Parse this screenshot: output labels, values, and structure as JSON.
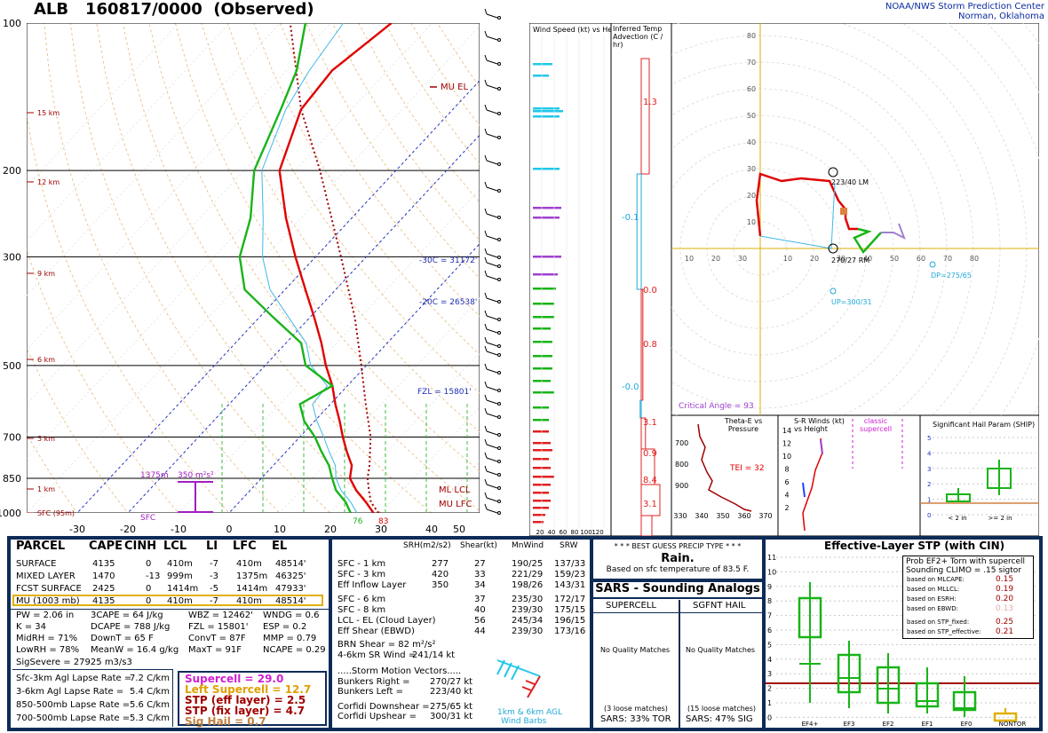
{
  "header": {
    "station": "ALB",
    "datetime": "160817/0000",
    "status": "(Observed)",
    "org_line1": "NOAA/NWS Storm Prediction Center",
    "org_line2": "Norman, Oklahoma"
  },
  "chart_data": [
    {
      "type": "line",
      "name": "skewt",
      "pressure_ticks": [
        "100",
        "200",
        "300",
        "500",
        "700",
        "850",
        "1000"
      ],
      "temp_ticks": [
        "-30",
        "-20",
        "-10",
        "0",
        "10",
        "20",
        "30",
        "40",
        "50"
      ],
      "height_labels": [
        "15 km",
        "12 km",
        "9 km",
        "6 km",
        "3 km",
        "1 km",
        "SFC (95m)"
      ],
      "annotations": {
        "mu_el": "MU EL",
        "m30c": "-30C = 31172'",
        "m20c": "-20C = 26538'",
        "fzl": "FZL = 15801'",
        "ml_lcl": "ML LCL",
        "mu_lfc": "MU LFC",
        "eff_top": "1375m",
        "eff_srh": "350 m²s²",
        "sfc": "SFC",
        "sfc_td": "76",
        "sfc_t": "83"
      },
      "temperature": [
        [
          1000,
          28.5
        ],
        [
          950,
          25
        ],
        [
          900,
          21
        ],
        [
          850,
          17.5
        ],
        [
          800,
          15.5
        ],
        [
          750,
          12
        ],
        [
          700,
          8.5
        ],
        [
          650,
          5
        ],
        [
          600,
          1
        ],
        [
          550,
          -3
        ],
        [
          500,
          -8
        ],
        [
          450,
          -13
        ],
        [
          400,
          -19
        ],
        [
          350,
          -26
        ],
        [
          300,
          -34
        ],
        [
          250,
          -43
        ],
        [
          200,
          -53
        ],
        [
          150,
          -60
        ],
        [
          125,
          -61
        ],
        [
          100,
          -58
        ]
      ],
      "dewpoint": [
        [
          1000,
          24
        ],
        [
          950,
          21
        ],
        [
          900,
          17
        ],
        [
          850,
          14
        ],
        [
          800,
          11
        ],
        [
          750,
          7
        ],
        [
          700,
          3
        ],
        [
          650,
          -2
        ],
        [
          600,
          -6
        ],
        [
          550,
          -3
        ],
        [
          500,
          -12
        ],
        [
          450,
          -17
        ],
        [
          400,
          -27
        ],
        [
          350,
          -38
        ],
        [
          300,
          -45
        ],
        [
          250,
          -50
        ],
        [
          200,
          -58
        ],
        [
          150,
          -64
        ],
        [
          125,
          -68
        ],
        [
          100,
          -75
        ]
      ]
    },
    {
      "type": "bar",
      "name": "wind-speed-vs-height",
      "title": "Wind Speed (kt) vs Height",
      "x_ticks": [
        "20",
        "40",
        "60",
        "80",
        "100",
        "120"
      ]
    },
    {
      "type": "bar",
      "name": "temp-advection",
      "title": "Inferred Temp Advection (C / hr)",
      "labels": [
        "1.3",
        "-0.1",
        "0.0",
        "0.8",
        "-0.0",
        "3.1",
        "0.9",
        "8.4",
        "3.1"
      ]
    },
    {
      "type": "line",
      "name": "hodograph",
      "ticks": [
        "10",
        "20",
        "30",
        "40",
        "50",
        "60",
        "70",
        "80"
      ],
      "x_ticks_left": [
        "30",
        "20",
        "10"
      ],
      "labels": {
        "lm": "223/40 LM",
        "rm": "270/27 RM",
        "dp": "DP=275/65",
        "up": "UP=300/31",
        "crit": "Critical Angle = 93"
      }
    },
    {
      "type": "line",
      "name": "theta-e",
      "title": "Theta-E vs Pressure",
      "tei": "TEI = 32",
      "x_ticks": [
        "330",
        "340",
        "350",
        "360",
        "370"
      ],
      "y_ticks": [
        "700",
        "800",
        "900"
      ]
    },
    {
      "type": "line",
      "name": "sr-winds",
      "title": "S-R Winds (kt) vs Height",
      "legend": "classic supercell",
      "y_ticks": [
        "14",
        "12",
        "10",
        "8",
        "6",
        "4",
        "2"
      ]
    },
    {
      "type": "bar",
      "name": "ship",
      "title": "Significant Hail Param (SHIP)",
      "y_ticks": [
        "5",
        "4",
        "3",
        "2",
        "1",
        "0"
      ],
      "categories": [
        "< 2 in",
        ">= 2 in"
      ]
    },
    {
      "type": "bar",
      "name": "eff-stp",
      "title": "Effective-Layer STP (with CIN)",
      "categories": [
        "EF4+",
        "EF3",
        "EF2",
        "EF1",
        "EF0",
        "NONTOR"
      ],
      "y_ticks": [
        "11",
        "10",
        "9",
        "8",
        "7",
        "6",
        "5",
        "4",
        "3",
        "2",
        "1",
        "0"
      ]
    }
  ],
  "parcel": {
    "headers": [
      "PARCEL",
      "CAPE",
      "CINH",
      "LCL",
      "LI",
      "LFC",
      "EL"
    ],
    "rows": [
      [
        "SURFACE",
        "4135",
        "0",
        "410m",
        "-7",
        "410m",
        "48514'"
      ],
      [
        "MIXED LAYER",
        "1470",
        "-13",
        "999m",
        "-3",
        "1375m",
        "46325'"
      ],
      [
        "FCST SURFACE",
        "2425",
        "0",
        "1414m",
        "-5",
        "1414m",
        "47933'"
      ],
      [
        "MU  (1003 mb)",
        "4135",
        "0",
        "410m",
        "-7",
        "410m",
        "48514'"
      ]
    ]
  },
  "indices": [
    [
      "PW = 2.06 in",
      "3CAPE = 64 J/kg",
      "WBZ = 12462'",
      "WNDG = 0.6"
    ],
    [
      "K = 34",
      "DCAPE = 788 J/kg",
      "FZL = 15801'",
      "ESP = 0.2"
    ],
    [
      "MidRH = 71%",
      "DownT = 65 F",
      "ConvT = 87F",
      "MMP = 0.79"
    ],
    [
      "LowRH = 78%",
      "MeanW = 16.4 g/kg",
      "MaxT = 91F",
      "NCAPE = 0.29"
    ]
  ],
  "sig_severe": "SigSevere = 27925 m3/s3",
  "lapse": [
    [
      "Sfc-3km Agl Lapse Rate =",
      "7.2 C/km"
    ],
    [
      "3-6km Agl Lapse Rate =",
      "5.4 C/km"
    ],
    [
      "850-500mb Lapse Rate =",
      "5.6 C/km"
    ],
    [
      "700-500mb Lapse Rate =",
      "5.3 C/km"
    ]
  ],
  "composites": [
    "Supercell = 29.0",
    "Left Supercell = 12.7",
    "STP (eff layer) = 2.5",
    "STP (fix layer) = 4.7",
    "Sig Hail = 0.7"
  ],
  "kinematics": {
    "headers": [
      "SRH(m2/s2)",
      "Shear(kt)",
      "MnWind",
      "SRW"
    ],
    "rows": [
      [
        "SFC - 1 km",
        "277",
        "27",
        "190/25",
        "137/33"
      ],
      [
        "SFC - 3 km",
        "420",
        "33",
        "221/29",
        "159/23"
      ],
      [
        "Eff Inflow Layer",
        "350",
        "34",
        "198/26",
        "143/31"
      ],
      [
        "SFC - 6 km",
        "",
        "37",
        "235/30",
        "172/17"
      ],
      [
        "SFC - 8 km",
        "",
        "40",
        "239/30",
        "175/15"
      ],
      [
        "LCL - EL (Cloud Layer)",
        "",
        "56",
        "245/34",
        "196/15"
      ],
      [
        "Eff Shear (EBWD)",
        "",
        "44",
        "239/30",
        "173/16"
      ]
    ],
    "brn": "BRN Shear =  82 m²/s²",
    "sr46_label": "4-6km SR Wind =",
    "sr46_value": "241/14 kt",
    "storm_title": ".....Storm Motion Vectors.....",
    "motions": [
      [
        "Bunkers Right =",
        "270/27 kt"
      ],
      [
        "Bunkers Left =",
        "223/40 kt"
      ],
      [
        "Corfidi Downshear =",
        "275/65 kt"
      ],
      [
        "Corfidi Upshear =",
        "300/31 kt"
      ]
    ],
    "barb_caption1": "1km & 6km AGL",
    "barb_caption2": "Wind Barbs"
  },
  "precip": {
    "title": "* * * BEST GUESS PRECIP TYPE * * *",
    "type": "Rain.",
    "note": "Based on sfc temperature of 83.5 F."
  },
  "sars": {
    "title": "SARS - Sounding Analogs",
    "col1": "SUPERCELL",
    "col2": "SGFNT HAIL",
    "none1": "No Quality Matches",
    "none2": "No Quality Matches",
    "loose1": "(3 loose matches)",
    "loose2": "(15 loose matches)",
    "pct1": "SARS:  33% TOR",
    "pct2": "SARS:  47% SIG"
  },
  "stp_box": {
    "title": "Prob EF2+ Torn with supercell",
    "sub": "Sounding CLIMO = .15 sigtor",
    "rows": [
      [
        "based on MLCAPE:",
        "0.15"
      ],
      [
        "based on MLLCL:",
        "0.19"
      ],
      [
        "based on ESRH:",
        "0.20"
      ],
      [
        "based on EBWD:",
        "0.13"
      ],
      [
        "based on STP_fixed:",
        "0.25"
      ],
      [
        "based on STP_effective:",
        "0.21"
      ]
    ]
  },
  "colors": {
    "temp": "#e00000",
    "dewp": "#18b418",
    "navy": "#0d2b57",
    "cyan": "#20c8e8",
    "purple": "#a040d0",
    "gold": "#e0b000",
    "darkred": "#a00000"
  }
}
